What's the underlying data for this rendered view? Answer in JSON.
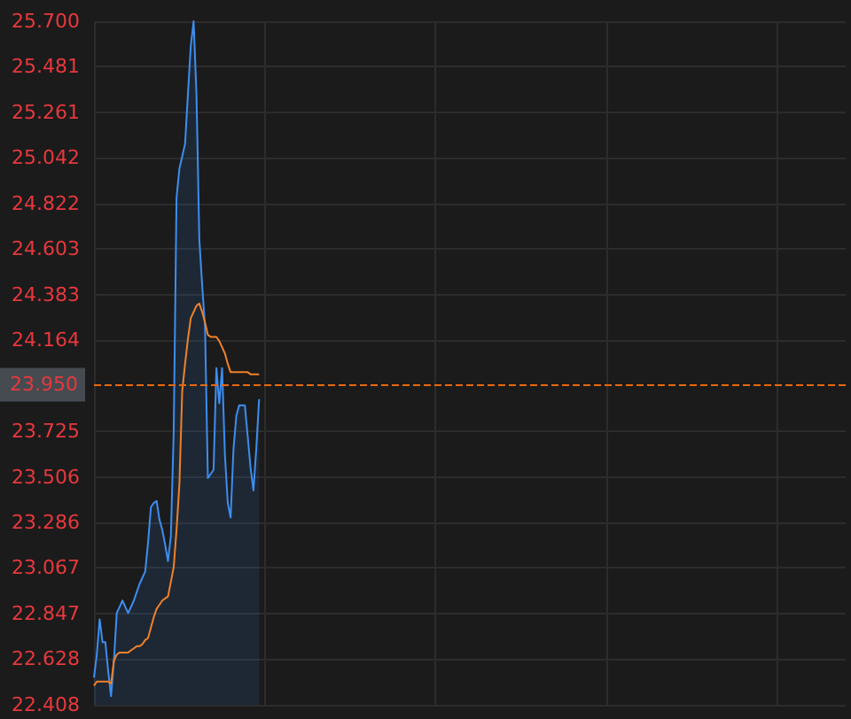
{
  "chart_data": {
    "type": "line",
    "categories": [
      null,
      null,
      null,
      null,
      null,
      null,
      null,
      null,
      null,
      null,
      null,
      null,
      null,
      null,
      null,
      null,
      null,
      null,
      null,
      null,
      null,
      null,
      null,
      null,
      null,
      null,
      null,
      null,
      null,
      null,
      null,
      null,
      null,
      null,
      null,
      null,
      null,
      null,
      null,
      null,
      null,
      null,
      null,
      null,
      null,
      null,
      null,
      null,
      null,
      null,
      null,
      null,
      null,
      null,
      null,
      null,
      null,
      null,
      null,
      null,
      null,
      null,
      null,
      null,
      null,
      null,
      null,
      null,
      null,
      null,
      null,
      null,
      null,
      null,
      null,
      null,
      null,
      null,
      null,
      null,
      null,
      null,
      null,
      null,
      null,
      null,
      null,
      null,
      null,
      null,
      null,
      null,
      null,
      null,
      null,
      null,
      null,
      null,
      null,
      null,
      null,
      null,
      null,
      null,
      null,
      null,
      null,
      null,
      null,
      null,
      null,
      null,
      null,
      null,
      null,
      null,
      null,
      null,
      null,
      null,
      null,
      null,
      null,
      null,
      null,
      null,
      null,
      null,
      null,
      null,
      null,
      null,
      null,
      null,
      null,
      null,
      null,
      null,
      null,
      null,
      null,
      null,
      null,
      null,
      null,
      null,
      null,
      null,
      null,
      null,
      null,
      null,
      null,
      null,
      null,
      null,
      null,
      null,
      null,
      null,
      null,
      null,
      null,
      null,
      null,
      null,
      null,
      null,
      null,
      null,
      null,
      null,
      null,
      null,
      null,
      null,
      null,
      null,
      null,
      null,
      null,
      null,
      null,
      null,
      null,
      null,
      null,
      null,
      null,
      null,
      null,
      null,
      null,
      null,
      null,
      null,
      null,
      null,
      null,
      null,
      null,
      null,
      null,
      null,
      null,
      null,
      null,
      null,
      null,
      null,
      null,
      null,
      null,
      null,
      null,
      null,
      null,
      null,
      null,
      null,
      null,
      null,
      null,
      null,
      null,
      null,
      null,
      null,
      null,
      null,
      null,
      null,
      null,
      null,
      null,
      null,
      null,
      null,
      null,
      null,
      null,
      null,
      null,
      null,
      null,
      null,
      null,
      null,
      null,
      null,
      null,
      null,
      null,
      null,
      null,
      null,
      null,
      null,
      null,
      null,
      null,
      null,
      null,
      null,
      null
    ],
    "ylim": [
      22.408,
      25.7
    ],
    "yticks": [
      {
        "value": 22.408,
        "label": "22.408"
      },
      {
        "value": 22.628,
        "label": "22.628"
      },
      {
        "value": 22.847,
        "label": "22.847"
      },
      {
        "value": 23.067,
        "label": "23.067"
      },
      {
        "value": 23.286,
        "label": "23.286"
      },
      {
        "value": 23.506,
        "label": "23.506"
      },
      {
        "value": 23.725,
        "label": "23.725"
      },
      {
        "value": 24.164,
        "label": "24.164"
      },
      {
        "value": 24.383,
        "label": "24.383"
      },
      {
        "value": 24.603,
        "label": "24.603"
      },
      {
        "value": 24.822,
        "label": "24.822"
      },
      {
        "value": 25.042,
        "label": "25.042"
      },
      {
        "value": 25.261,
        "label": "25.261"
      },
      {
        "value": 25.481,
        "label": "25.481"
      },
      {
        "value": 25.7,
        "label": "25.700"
      }
    ],
    "grid": true,
    "marker": "none",
    "series": [
      {
        "type": "area",
        "color": "#3d8ef0",
        "values": [
          22.54,
          22.65,
          22.82,
          22.71,
          22.71,
          22.57,
          22.45,
          22.62,
          22.85,
          22.88,
          22.91,
          22.88,
          22.85,
          22.88,
          22.91,
          22.95,
          22.99,
          23.02,
          23.05,
          23.19,
          23.36,
          23.38,
          23.39,
          23.3,
          23.25,
          23.18,
          23.1,
          23.22,
          23.72,
          24.85,
          24.99,
          25.05,
          25.11,
          25.35,
          25.58,
          25.7,
          25.35,
          24.65,
          24.43,
          24.23,
          23.5,
          23.52,
          23.54,
          24.03,
          23.86,
          24.03,
          23.61,
          23.38,
          23.31,
          23.64,
          23.8,
          23.85,
          23.85,
          23.85,
          23.7,
          23.55,
          23.44,
          23.64,
          23.88,
          null,
          null,
          null,
          null,
          null,
          null,
          null,
          null,
          null,
          null,
          null,
          null,
          null,
          null,
          null,
          null,
          null,
          null,
          null,
          null,
          null,
          null,
          null,
          null,
          null,
          null,
          null,
          null,
          null,
          null,
          null,
          null,
          null,
          null,
          null,
          null,
          null,
          null,
          null,
          null,
          null,
          null,
          null,
          null,
          null,
          null,
          null,
          null,
          null,
          null,
          null,
          null,
          null,
          null,
          null,
          null,
          null,
          null,
          null,
          null,
          null,
          null,
          null,
          null,
          null,
          null,
          null,
          null,
          null,
          null,
          null,
          null,
          null,
          null,
          null,
          null,
          null,
          null,
          null,
          null,
          null,
          null,
          null,
          null,
          null,
          null,
          null,
          null,
          null,
          null,
          null,
          null,
          null,
          null,
          null,
          null,
          null,
          null,
          null,
          null,
          null,
          null,
          null,
          null,
          null,
          null,
          null,
          null,
          null,
          null,
          null,
          null,
          null,
          null,
          null,
          null,
          null,
          null,
          null,
          null,
          null,
          null,
          null,
          null,
          null,
          null,
          null,
          null,
          null,
          null,
          null,
          null,
          null,
          null,
          null,
          null,
          null,
          null,
          null,
          null,
          null,
          null,
          null,
          null,
          null,
          null,
          null,
          null,
          null,
          null,
          null,
          null,
          null,
          null,
          null,
          null,
          null,
          null,
          null,
          null,
          null,
          null,
          null,
          null,
          null,
          null,
          null,
          null,
          null,
          null,
          null,
          null,
          null,
          null,
          null,
          null,
          null,
          null,
          null,
          null,
          null,
          null,
          null,
          null,
          null,
          null,
          null,
          null,
          null,
          null,
          null,
          null,
          null,
          null,
          null,
          null,
          null,
          null,
          null,
          null,
          null,
          null,
          null,
          null,
          null,
          null
        ]
      },
      {
        "type": "line",
        "color": "#f0822a",
        "values": [
          22.5,
          22.52,
          22.52,
          22.52,
          22.52,
          22.52,
          22.51,
          22.62,
          22.65,
          22.66,
          22.66,
          22.66,
          22.66,
          22.67,
          22.68,
          22.69,
          22.69,
          22.7,
          22.72,
          22.73,
          22.78,
          22.83,
          22.87,
          22.89,
          22.91,
          22.92,
          22.93,
          23.0,
          23.07,
          23.25,
          23.47,
          23.92,
          24.05,
          24.17,
          24.27,
          24.3,
          24.33,
          24.34,
          24.3,
          24.25,
          24.19,
          24.18,
          24.18,
          24.18,
          24.16,
          24.13,
          24.1,
          24.05,
          24.01,
          24.01,
          24.01,
          24.01,
          24.01,
          24.01,
          24.01,
          24.0,
          24.0,
          24.0,
          24.0,
          null,
          null,
          null,
          null,
          null,
          null,
          null,
          null,
          null,
          null,
          null,
          null,
          null,
          null,
          null,
          null,
          null,
          null,
          null,
          null,
          null,
          null,
          null,
          null,
          null,
          null,
          null,
          null,
          null,
          null,
          null,
          null,
          null,
          null,
          null,
          null,
          null,
          null,
          null,
          null,
          null,
          null,
          null,
          null,
          null,
          null,
          null,
          null,
          null,
          null,
          null,
          null,
          null,
          null,
          null,
          null,
          null,
          null,
          null,
          null,
          null,
          null,
          null,
          null,
          null,
          null,
          null,
          null,
          null,
          null,
          null,
          null,
          null,
          null,
          null,
          null,
          null,
          null,
          null,
          null,
          null,
          null,
          null,
          null,
          null,
          null,
          null,
          null,
          null,
          null,
          null,
          null,
          null,
          null,
          null,
          null,
          null,
          null,
          null,
          null,
          null,
          null,
          null,
          null,
          null,
          null,
          null,
          null,
          null,
          null,
          null,
          null,
          null,
          null,
          null,
          null,
          null,
          null,
          null,
          null,
          null,
          null,
          null,
          null,
          null,
          null,
          null,
          null,
          null,
          null,
          null,
          null,
          null,
          null,
          null,
          null,
          null,
          null,
          null,
          null,
          null,
          null,
          null,
          null,
          null,
          null,
          null,
          null,
          null,
          null,
          null,
          null,
          null,
          null,
          null,
          null,
          null,
          null,
          null,
          null,
          null,
          null,
          null,
          null,
          null,
          null,
          null,
          null,
          null,
          null,
          null,
          null,
          null,
          null,
          null,
          null,
          null,
          null,
          null,
          null,
          null,
          null,
          null,
          null,
          null,
          null,
          null,
          null,
          null,
          null,
          null,
          null,
          null,
          null,
          null,
          null,
          null,
          null,
          null,
          null,
          null,
          null,
          null,
          null,
          null,
          null
        ]
      }
    ],
    "ref_lines": [
      {
        "axis": "y",
        "value": 23.95,
        "label": "23.950",
        "color": "#e8690f",
        "line_style": "dashed"
      }
    ]
  }
}
